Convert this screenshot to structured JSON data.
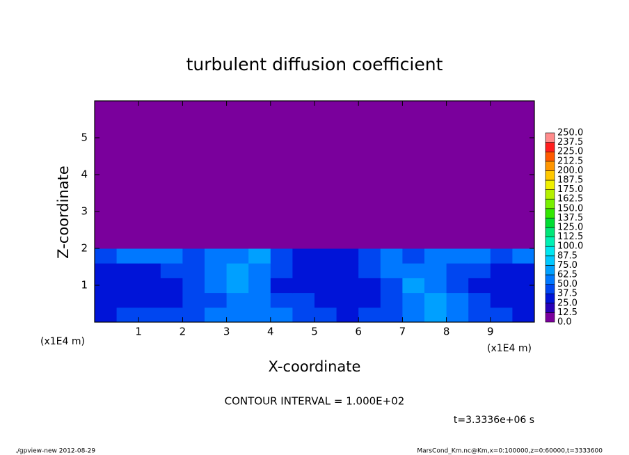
{
  "chart_data": {
    "type": "heatmap",
    "title": "turbulent diffusion coefficient",
    "xlabel": "X-coordinate",
    "ylabel": "Z-coordinate",
    "xunit": "(x1E4 m)",
    "yunit": "(x1E4 m)",
    "xlim": [
      0,
      10
    ],
    "ylim": [
      0,
      6
    ],
    "xticks": [
      1,
      2,
      3,
      4,
      5,
      6,
      7,
      8,
      9
    ],
    "yticks": [
      1,
      2,
      3,
      4,
      5
    ],
    "x_edges": [
      0,
      0.5,
      1,
      1.5,
      2,
      2.5,
      3,
      3.5,
      4,
      4.5,
      5,
      5.5,
      6,
      6.5,
      7,
      7.5,
      8,
      8.5,
      9,
      9.5,
      10
    ],
    "y_edges": [
      0,
      0.4,
      0.8,
      1.2,
      1.6,
      2,
      6
    ],
    "z": [
      [
        35,
        40,
        45,
        40,
        45,
        50,
        55,
        60,
        50,
        45,
        40,
        35,
        40,
        45,
        55,
        70,
        60,
        45,
        40,
        35
      ],
      [
        30,
        25,
        30,
        35,
        40,
        45,
        55,
        50,
        45,
        40,
        35,
        30,
        35,
        45,
        60,
        65,
        55,
        40,
        35,
        30
      ],
      [
        30,
        25,
        25,
        30,
        40,
        50,
        65,
        55,
        35,
        25,
        35,
        25,
        30,
        45,
        65,
        55,
        45,
        35,
        30,
        30
      ],
      [
        35,
        30,
        35,
        40,
        45,
        55,
        70,
        60,
        40,
        30,
        35,
        30,
        40,
        55,
        60,
        50,
        45,
        40,
        35,
        35
      ],
      [
        45,
        55,
        60,
        50,
        45,
        50,
        60,
        65,
        45,
        35,
        35,
        35,
        45,
        50,
        45,
        50,
        55,
        50,
        45,
        50
      ],
      [
        5,
        5,
        5,
        5,
        5,
        5,
        5,
        5,
        5,
        5,
        5,
        5,
        5,
        5,
        5,
        5,
        5,
        5,
        5,
        5
      ]
    ],
    "levels": [
      {
        "value": 0,
        "label": "0.0"
      },
      12.5,
      {
        "value": 25,
        "label": "25.0"
      },
      37.5,
      {
        "value": 50,
        "label": "50.0"
      },
      62.5,
      {
        "value": 75,
        "label": "75.0"
      },
      87.5,
      {
        "value": 100,
        "label": "100.0"
      },
      112.5,
      {
        "value": 125,
        "label": "125.0"
      },
      137.5,
      {
        "value": 150,
        "label": "150.0"
      },
      162.5,
      {
        "value": 175,
        "label": "175.0"
      },
      187.5,
      {
        "value": 200,
        "label": "200.0"
      },
      212.5,
      {
        "value": 225,
        "label": "225.0"
      },
      237.5,
      {
        "value": 250,
        "label": "250.0"
      }
    ],
    "colors": [
      "#7a009c",
      "#2800b8",
      "#0014d8",
      "#0046f0",
      "#0078ff",
      "#00a0ff",
      "#00c8ff",
      "#00e6f0",
      "#00f0b4",
      "#00e678",
      "#00dc32",
      "#32e600",
      "#78f000",
      "#b4f000",
      "#f0f000",
      "#ffc800",
      "#ff9600",
      "#ff5a00",
      "#ff1e1e",
      "#ff8c8c"
    ],
    "contour_interval": "CONTOUR INTERVAL = 1.000E+02",
    "time_label": "t=3.3336e+06 s",
    "footer_left": "./gpview-new  2012-08-29",
    "footer_right": "MarsCond_Km.nc@Km,x=0:100000,z=0:60000,t=3333600"
  }
}
